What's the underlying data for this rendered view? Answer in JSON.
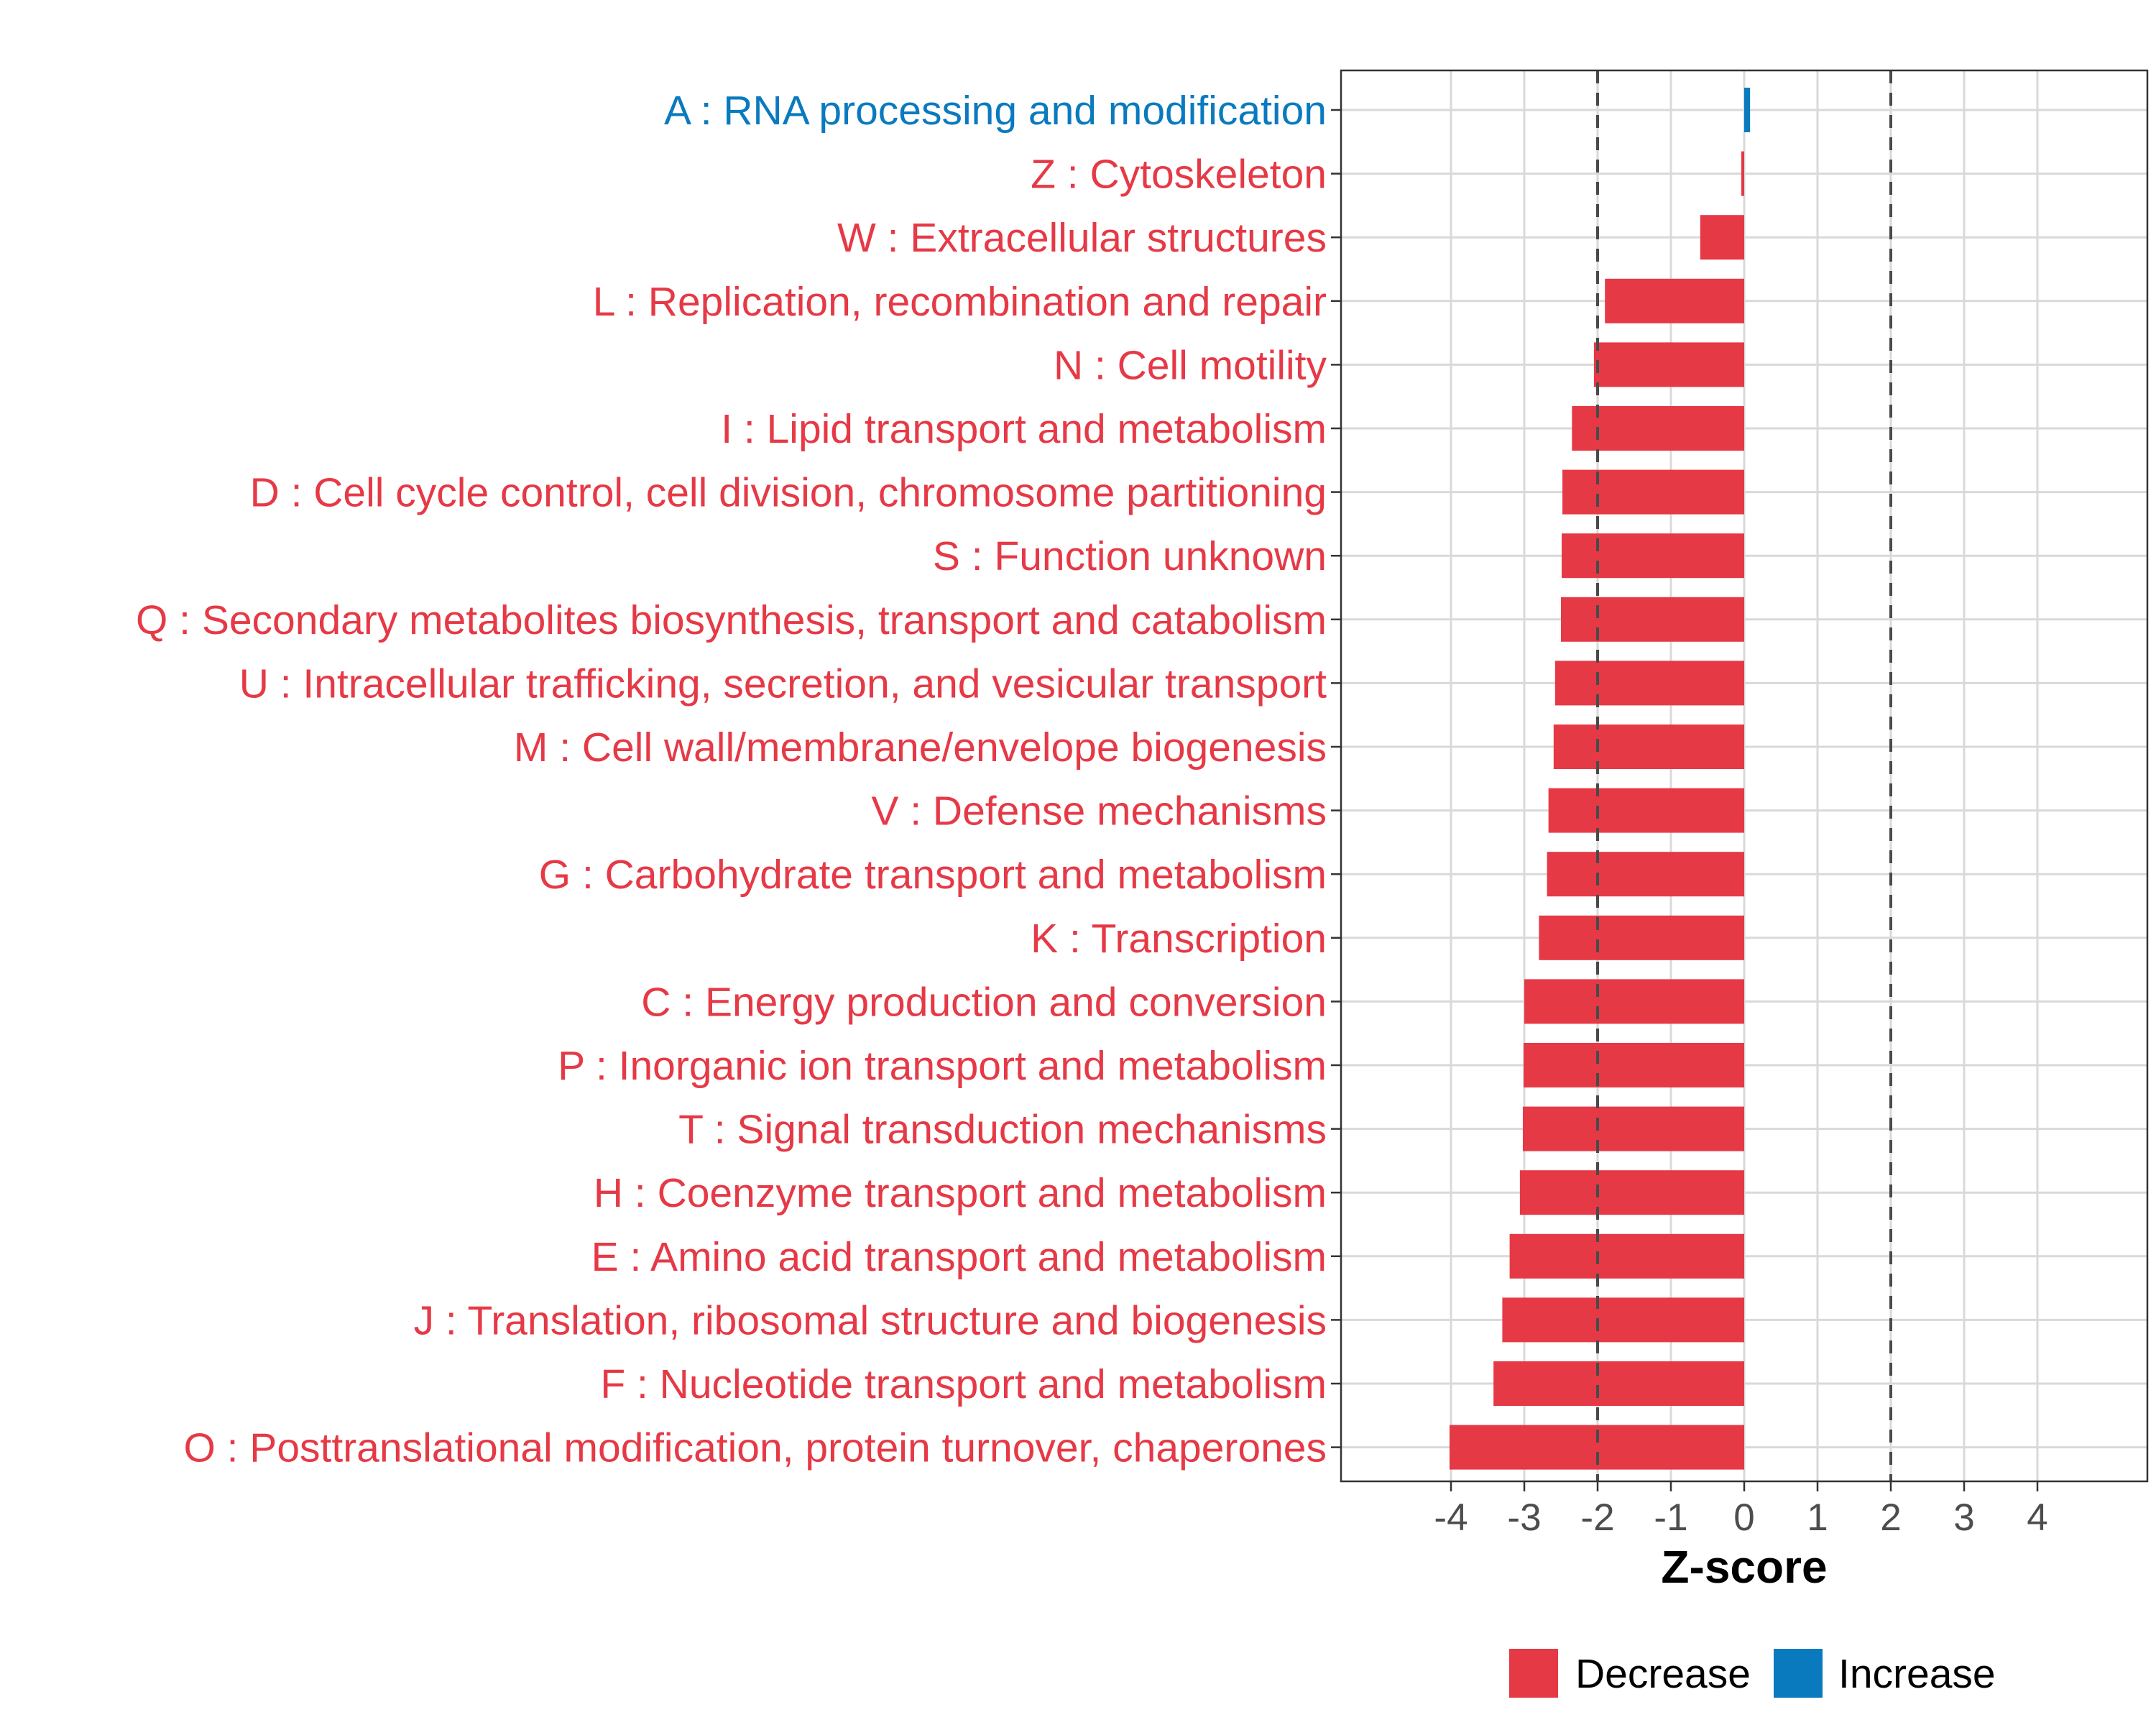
{
  "chart_data": {
    "type": "bar",
    "orientation": "horizontal",
    "title": "",
    "xlabel": "Z-score",
    "ylabel": "",
    "xlim": [
      -5.2,
      5.7
    ],
    "xticks": [
      -4,
      -3,
      -2,
      -1,
      0,
      1,
      2,
      3,
      4
    ],
    "reference_lines": [
      -2,
      2
    ],
    "grid": true,
    "legend_position": "bottom",
    "colors": {
      "Decrease": "#E63946",
      "Increase": "#0A7ABF"
    },
    "legend": [
      {
        "label": "Decrease",
        "key": "Decrease"
      },
      {
        "label": "Increase",
        "key": "Increase"
      }
    ],
    "categories": [
      {
        "label": "A : RNA processing and modification",
        "value": 0.08,
        "group": "Increase"
      },
      {
        "label": "Z : Cytoskeleton",
        "value": -0.04,
        "group": "Decrease"
      },
      {
        "label": "W : Extracellular structures",
        "value": -0.6,
        "group": "Decrease"
      },
      {
        "label": "L : Replication, recombination and repair",
        "value": -1.9,
        "group": "Decrease"
      },
      {
        "label": "N : Cell motility",
        "value": -2.05,
        "group": "Decrease"
      },
      {
        "label": "I : Lipid transport and metabolism",
        "value": -2.35,
        "group": "Decrease"
      },
      {
        "label": "D : Cell cycle control, cell division, chromosome partitioning",
        "value": -2.48,
        "group": "Decrease"
      },
      {
        "label": "S : Function unknown",
        "value": -2.49,
        "group": "Decrease"
      },
      {
        "label": "Q : Secondary metabolites biosynthesis, transport and catabolism",
        "value": -2.5,
        "group": "Decrease"
      },
      {
        "label": "U : Intracellular trafficking, secretion, and vesicular transport",
        "value": -2.58,
        "group": "Decrease"
      },
      {
        "label": "M : Cell wall/membrane/envelope biogenesis",
        "value": -2.6,
        "group": "Decrease"
      },
      {
        "label": "V : Defense mechanisms",
        "value": -2.67,
        "group": "Decrease"
      },
      {
        "label": "G : Carbohydrate transport and metabolism",
        "value": -2.69,
        "group": "Decrease"
      },
      {
        "label": "K : Transcription",
        "value": -2.8,
        "group": "Decrease"
      },
      {
        "label": "C : Energy production and conversion",
        "value": -3.0,
        "group": "Decrease"
      },
      {
        "label": "P : Inorganic ion transport and metabolism",
        "value": -3.01,
        "group": "Decrease"
      },
      {
        "label": "T : Signal transduction mechanisms",
        "value": -3.02,
        "group": "Decrease"
      },
      {
        "label": "H : Coenzyme transport and metabolism",
        "value": -3.06,
        "group": "Decrease"
      },
      {
        "label": "E : Amino acid transport and metabolism",
        "value": -3.2,
        "group": "Decrease"
      },
      {
        "label": "J : Translation, ribosomal structure and biogenesis",
        "value": -3.3,
        "group": "Decrease"
      },
      {
        "label": "F : Nucleotide transport and metabolism",
        "value": -3.42,
        "group": "Decrease"
      },
      {
        "label": "O : Posttranslational modification, protein turnover, chaperones",
        "value": -4.02,
        "group": "Decrease"
      }
    ]
  }
}
